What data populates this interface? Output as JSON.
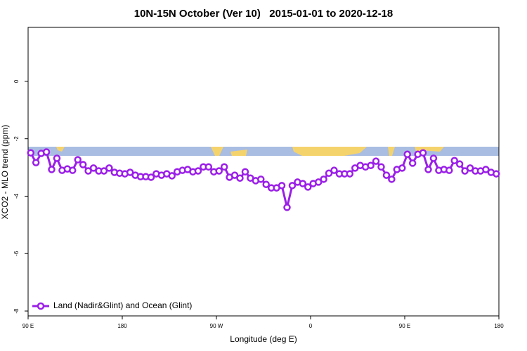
{
  "chart_data": {
    "type": "line",
    "title": "10N-15N October (Ver 10)   2015-01-01 to 2020-12-18",
    "x_label": "Longitude (deg E)",
    "y_label": "XCO2 - MLO trend (ppm)",
    "x": [
      92.5,
      97.5,
      102.5,
      107.5,
      112.5,
      117.5,
      122.5,
      127.5,
      132.5,
      137.5,
      142.5,
      147.5,
      152.5,
      157.5,
      162.5,
      167.5,
      172.5,
      177.5,
      182.5,
      187.5,
      192.5,
      197.5,
      202.5,
      207.5,
      212.5,
      217.5,
      222.5,
      227.5,
      232.5,
      237.5,
      242.5,
      247.5,
      252.5,
      257.5,
      262.5,
      267.5,
      272.5,
      277.5,
      282.5,
      287.5,
      292.5,
      297.5,
      302.5,
      307.5,
      312.5,
      317.5,
      322.5,
      327.5,
      332.5,
      337.5,
      342.5,
      347.5,
      352.5,
      357.5,
      362.5,
      367.5,
      372.5,
      377.5,
      382.5,
      387.5,
      392.5,
      397.5,
      402.5,
      407.5,
      412.5,
      417.5,
      422.5,
      427.5,
      432.5,
      437.5,
      442.5,
      447.5,
      452.5,
      457.5,
      462.5,
      467.5,
      472.5,
      477.5,
      482.5,
      487.5,
      492.5,
      497.5,
      502.5,
      507.5,
      512.5,
      517.5,
      522.5,
      527.5,
      532.5,
      537.5
    ],
    "series": [
      {
        "name": "Land (Nadir&Glint) and Ocean (Glint)",
        "color": "#9b1fe8",
        "values": [
          -2.49,
          -2.83,
          -2.51,
          -2.46,
          -3.07,
          -2.68,
          -3.1,
          -3.05,
          -3.1,
          -2.73,
          -2.9,
          -3.12,
          -3.02,
          -3.12,
          -3.12,
          -3.02,
          -3.17,
          -3.2,
          -3.22,
          -3.17,
          -3.27,
          -3.32,
          -3.32,
          -3.34,
          -3.22,
          -3.27,
          -3.22,
          -3.29,
          -3.15,
          -3.1,
          -3.07,
          -3.15,
          -3.12,
          -2.98,
          -2.98,
          -3.15,
          -3.12,
          -2.98,
          -3.34,
          -3.27,
          -3.37,
          -3.15,
          -3.37,
          -3.46,
          -3.41,
          -3.59,
          -3.71,
          -3.71,
          -3.63,
          -4.39,
          -3.63,
          -3.51,
          -3.56,
          -3.68,
          -3.56,
          -3.51,
          -3.41,
          -3.2,
          -3.1,
          -3.22,
          -3.22,
          -3.22,
          -3.02,
          -2.93,
          -2.98,
          -2.93,
          -2.78,
          -2.98,
          -3.27,
          -3.41,
          -3.07,
          -3.02,
          -2.54,
          -2.85,
          -2.54,
          -2.49,
          -3.07,
          -2.68,
          -3.1,
          -3.07,
          -3.1,
          -2.76,
          -2.88,
          -3.12,
          -3.02,
          -3.12,
          -3.12,
          -3.07,
          -3.17,
          -3.22
        ]
      }
    ],
    "xlim": [
      90,
      540
    ],
    "xticks": [
      {
        "value": 90,
        "label": "90 E"
      },
      180,
      {
        "value": 270,
        "label": "90 W"
      },
      {
        "value": 360,
        "label": "0"
      },
      {
        "value": 450,
        "label": "90 E"
      },
      {
        "value": 540,
        "label": "180"
      }
    ],
    "ylim": [
      -8.17,
      1.88
    ],
    "yticks": [
      -8,
      -6,
      -4,
      -2,
      0
    ],
    "legend": "bottom-left"
  }
}
